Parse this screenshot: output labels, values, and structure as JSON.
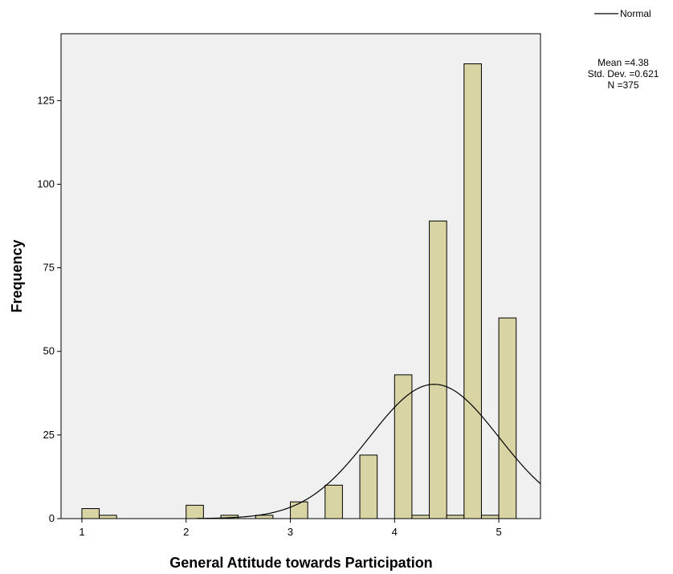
{
  "chart_data": {
    "type": "bar",
    "title": "",
    "xlabel": "General Attitude towards Participation",
    "ylabel": "Frequency",
    "xlim": [
      0.8,
      5.4
    ],
    "ylim": [
      0,
      145
    ],
    "x_ticks": [
      1,
      2,
      3,
      4,
      5
    ],
    "y_ticks": [
      0,
      25,
      50,
      75,
      100,
      125
    ],
    "bin_width": 0.1667,
    "bars": [
      {
        "x": 1.0833,
        "value": 3
      },
      {
        "x": 1.25,
        "value": 1
      },
      {
        "x": 2.0833,
        "value": 4
      },
      {
        "x": 2.4167,
        "value": 1
      },
      {
        "x": 2.75,
        "value": 1
      },
      {
        "x": 3.0833,
        "value": 5
      },
      {
        "x": 3.4167,
        "value": 10
      },
      {
        "x": 3.75,
        "value": 19
      },
      {
        "x": 4.0833,
        "value": 43
      },
      {
        "x": 4.25,
        "value": 1
      },
      {
        "x": 4.4167,
        "value": 89
      },
      {
        "x": 4.5833,
        "value": 1
      },
      {
        "x": 4.75,
        "value": 136
      },
      {
        "x": 4.9167,
        "value": 1
      },
      {
        "x": 5.0833,
        "value": 60
      }
    ],
    "normal_curve": {
      "mean": 4.38,
      "sd": 0.621,
      "n": 375
    },
    "legend": {
      "label": "Normal",
      "position": "top-right"
    },
    "stats": {
      "mean_text": "Mean =4.38",
      "sd_text": "Std. Dev. =0.621",
      "n_text": "N =375"
    },
    "grid": false,
    "colors": {
      "bar_fill": "#d8d4a4",
      "plot_background": "#f0f0f0",
      "curve": "#000000"
    }
  }
}
